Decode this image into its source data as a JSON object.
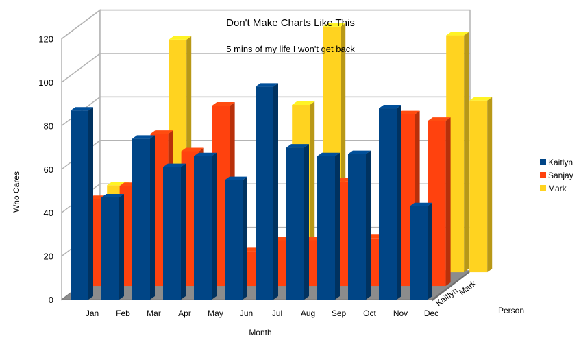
{
  "chart_data": {
    "type": "bar",
    "title": "Don't Make Charts Like This",
    "subtitle": "5 mins of my life I won't get back",
    "xlabel": "Month",
    "ylabel": "Who Cares",
    "zlabel": "Person",
    "categories": [
      "Jan",
      "Feb",
      "Mar",
      "Apr",
      "May",
      "Jun",
      "Jul",
      "Aug",
      "Sep",
      "Oct",
      "Nov",
      "Dec"
    ],
    "ylim": [
      0,
      120
    ],
    "yticks": [
      "0",
      "20",
      "40",
      "60",
      "80",
      "100",
      "120"
    ],
    "grid": true,
    "legend_position": "right",
    "depth_labels": [
      "Kaitlyn",
      "Mark"
    ],
    "series": [
      {
        "name": "Kaitlyn",
        "color": "#004586",
        "values": [
          87,
          47,
          74,
          61,
          66,
          55,
          98,
          70,
          66,
          67,
          88,
          43
        ]
      },
      {
        "name": "Sanjay",
        "color": "#ff420e",
        "values": [
          40,
          46,
          70,
          62,
          83,
          16,
          21,
          21,
          48,
          22,
          79,
          76
        ]
      },
      {
        "name": "Mark",
        "color": "#ffd320",
        "values": [
          40,
          0,
          107,
          50,
          0,
          0,
          77,
          113,
          0,
          40,
          0,
          109
        ]
      }
    ],
    "extra_back_bar": {
      "series": "Mark",
      "value": 79
    }
  }
}
